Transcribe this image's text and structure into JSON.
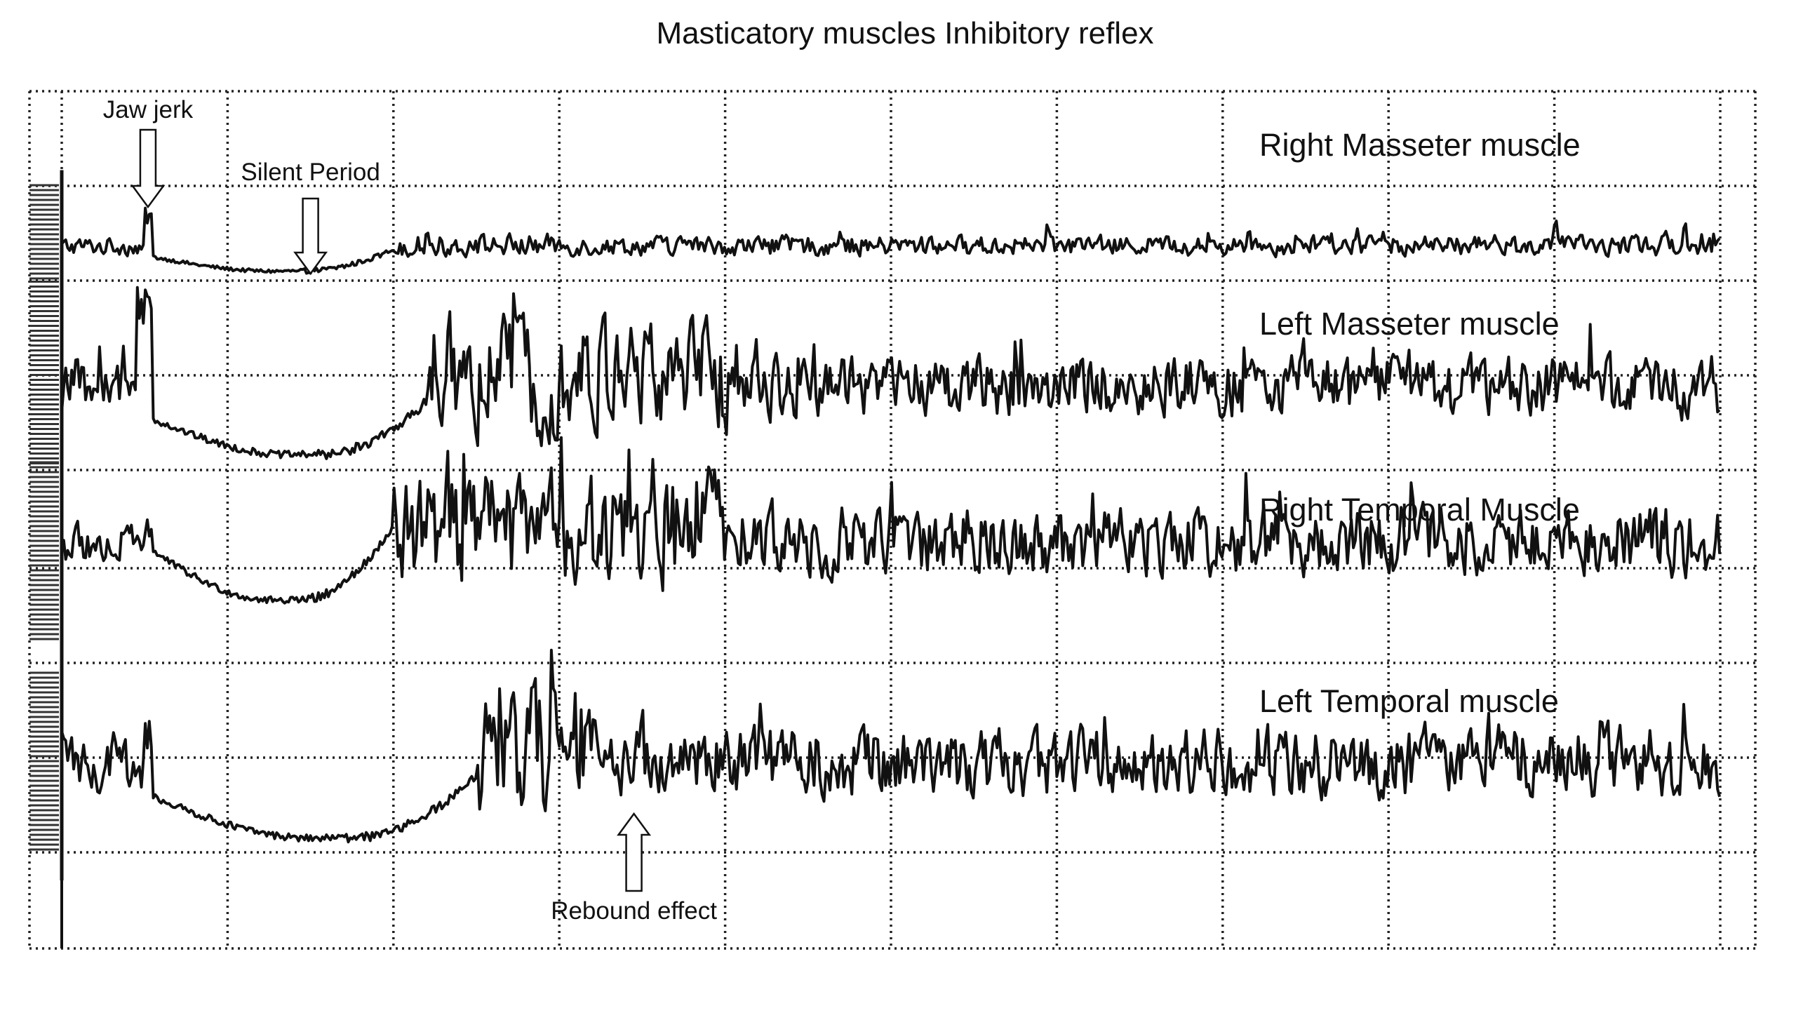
{
  "chart_data": {
    "type": "line",
    "title": "Masticatory muscles Inhibitory reflex",
    "xlabel": "",
    "ylabel": "",
    "grid": true,
    "x_divisions": 10,
    "series": [
      {
        "name": "Right Masseter muscle",
        "label": "Right Masseter muscle",
        "baseline": 0.2,
        "segments": [
          {
            "start": 0.0,
            "end": 0.5,
            "shape": "activity",
            "amplitude": 0.2
          },
          {
            "start": 0.5,
            "end": 0.55,
            "shape": "peak",
            "peak": 0.55
          },
          {
            "start": 0.55,
            "end": 2.0,
            "shape": "silent",
            "level": 0.02
          },
          {
            "start": 2.0,
            "end": 3.0,
            "shape": "activity",
            "amplitude": 0.25
          },
          {
            "start": 3.0,
            "end": 10.0,
            "shape": "activity",
            "amplitude": 0.22
          }
        ]
      },
      {
        "name": "Left Masseter muscle",
        "label": "Left Masseter muscle",
        "baseline": 0.25,
        "segments": [
          {
            "start": 0.0,
            "end": 0.45,
            "shape": "activity",
            "amplitude": 0.3
          },
          {
            "start": 0.45,
            "end": 0.55,
            "shape": "peak",
            "peak": 0.75
          },
          {
            "start": 0.55,
            "end": 2.2,
            "shape": "silent",
            "level": 0.02
          },
          {
            "start": 2.2,
            "end": 4.1,
            "shape": "rebound",
            "amplitude": 0.65
          },
          {
            "start": 4.1,
            "end": 10.0,
            "shape": "activity",
            "amplitude": 0.35
          }
        ]
      },
      {
        "name": "Right Temporal Muscle",
        "label": "Right Temporal Muscle",
        "baseline": 0.35,
        "segments": [
          {
            "start": 0.0,
            "end": 0.5,
            "shape": "activity",
            "amplitude": 0.25
          },
          {
            "start": 0.5,
            "end": 0.55,
            "shape": "peak",
            "peak": 0.55
          },
          {
            "start": 0.55,
            "end": 2.0,
            "shape": "silent",
            "level": 0.15
          },
          {
            "start": 2.0,
            "end": 4.0,
            "shape": "rebound",
            "amplitude": 0.65
          },
          {
            "start": 4.0,
            "end": 10.0,
            "shape": "activity",
            "amplitude": 0.4
          }
        ]
      },
      {
        "name": "Left Temporal muscle",
        "label": "Left Temporal muscle",
        "baseline": 0.3,
        "segments": [
          {
            "start": 0.0,
            "end": 0.5,
            "shape": "activity",
            "amplitude": 0.3
          },
          {
            "start": 0.5,
            "end": 0.55,
            "shape": "peak",
            "peak": 0.55
          },
          {
            "start": 0.55,
            "end": 2.5,
            "shape": "silent",
            "level": 0.03
          },
          {
            "start": 2.5,
            "end": 3.2,
            "shape": "rebound",
            "amplitude": 0.75
          },
          {
            "start": 3.2,
            "end": 10.0,
            "shape": "activity",
            "amplitude": 0.4
          }
        ]
      }
    ],
    "annotations": [
      {
        "text": "Jaw jerk",
        "x": 0.52,
        "series": 0,
        "arrow": "down"
      },
      {
        "text": "Silent Period",
        "x": 1.5,
        "series": 0,
        "arrow": "down"
      },
      {
        "text": "Rebound effect",
        "x": 3.45,
        "series": 3,
        "arrow": "up"
      }
    ]
  }
}
